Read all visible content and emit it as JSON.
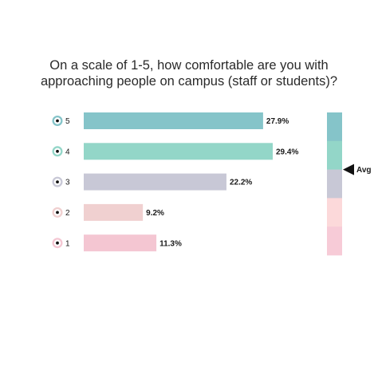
{
  "question": "On a scale of 1-5, how comfortable are you with approaching people on campus (staff or students)?",
  "avg_label": "Avg",
  "chart_data": {
    "type": "bar",
    "orientation": "horizontal",
    "title": "On a scale of 1-5, how comfortable are you with approaching people on campus (staff or students)?",
    "categories": [
      "5",
      "4",
      "3",
      "2",
      "1"
    ],
    "values": [
      27.9,
      29.4,
      22.2,
      9.2,
      11.3
    ],
    "value_labels": [
      "27.9%",
      "29.4%",
      "22.2%",
      "9.2%",
      "11.3%"
    ],
    "colors": [
      "#85c4c9",
      "#93d6c8",
      "#c8c8d6",
      "#f0d0d0",
      "#f4c6d2"
    ],
    "dot_ring_colors": [
      "#85c4c9",
      "#93d6c8",
      "#c8c8d6",
      "#f0d0d0",
      "#f4c6d2"
    ],
    "scale_colors": [
      "#85c4c9",
      "#93d6c8",
      "#c8c8d6",
      "#fcd9da",
      "#f7cbd7"
    ],
    "average_indicator": {
      "label": "Avg",
      "value": 3.5
    },
    "xlim": [
      0,
      29.4
    ],
    "grid": false,
    "legend": "none"
  }
}
